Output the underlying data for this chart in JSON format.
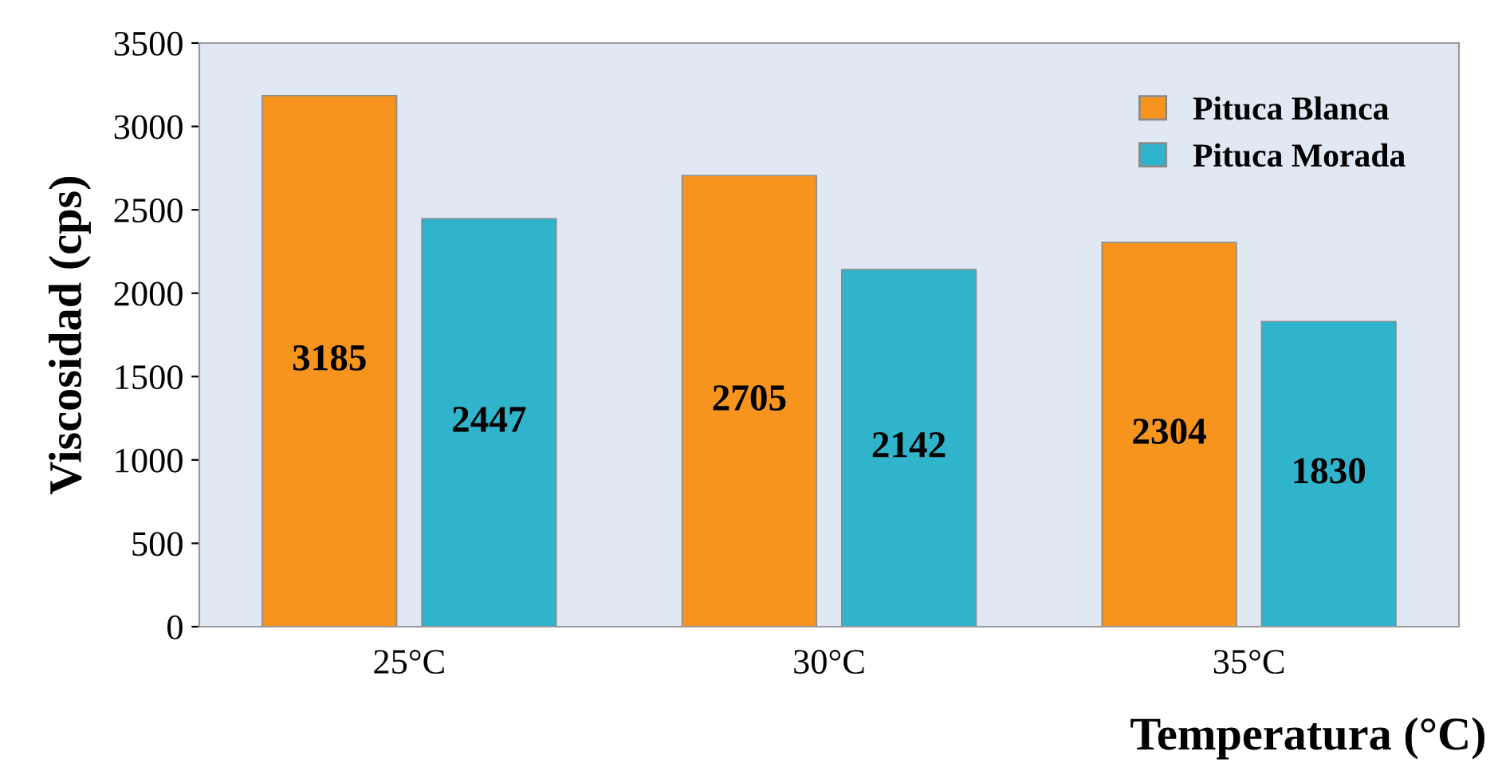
{
  "chart_data": {
    "type": "bar",
    "xlabel": "Temperatura (°C)",
    "ylabel": "Viscosidad (cps)",
    "categories": [
      "25°C",
      "30°C",
      "35°C"
    ],
    "series": [
      {
        "name": "Pituca Blanca",
        "color": "#f7941d",
        "values": [
          3185,
          2705,
          2304
        ]
      },
      {
        "name": "Pituca Morada",
        "color": "#2fb4cc",
        "values": [
          2447,
          2142,
          1830
        ]
      }
    ],
    "ylim": [
      0,
      3500
    ],
    "yticks": [
      0,
      500,
      1000,
      1500,
      2000,
      2500,
      3000,
      3500
    ],
    "data_labels": true,
    "legend": "top right",
    "grid": false
  }
}
